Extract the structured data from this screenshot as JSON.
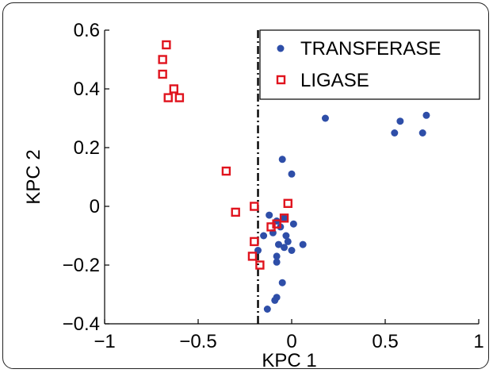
{
  "chart_data": {
    "type": "scatter",
    "title": "",
    "xlabel": "KPC 1",
    "ylabel": "KPC 2",
    "xlim": [
      -1,
      1
    ],
    "ylim": [
      -0.4,
      0.6
    ],
    "xticks": [
      -1,
      -0.5,
      0,
      0.5,
      1
    ],
    "xtick_labels": [
      "−1",
      "−0.5",
      "0",
      "0.5",
      "1"
    ],
    "yticks": [
      -0.4,
      -0.2,
      0,
      0.2,
      0.4,
      0.6
    ],
    "ytick_labels": [
      "−0.4",
      "−0.2",
      "0",
      "0.2",
      "0.4",
      "0.6"
    ],
    "threshold_x": -0.18,
    "legend_position": "top-right",
    "series": [
      {
        "name": "TRANSFERASE",
        "marker": "filled-circle",
        "color": "#2e4ea8",
        "points": [
          [
            0.18,
            0.3
          ],
          [
            0.55,
            0.25
          ],
          [
            0.58,
            0.29
          ],
          [
            0.7,
            0.25
          ],
          [
            0.72,
            0.31
          ],
          [
            -0.05,
            0.16
          ],
          [
            0.0,
            0.11
          ],
          [
            -0.12,
            -0.03
          ],
          [
            -0.08,
            -0.05
          ],
          [
            -0.04,
            -0.04
          ],
          [
            0.01,
            -0.06
          ],
          [
            -0.1,
            -0.09
          ],
          [
            -0.06,
            -0.07
          ],
          [
            -0.03,
            -0.1
          ],
          [
            -0.15,
            -0.1
          ],
          [
            -0.07,
            -0.13
          ],
          [
            -0.02,
            -0.12
          ],
          [
            0.0,
            -0.15
          ],
          [
            0.06,
            -0.13
          ],
          [
            -0.18,
            -0.15
          ],
          [
            -0.08,
            -0.17
          ],
          [
            -0.04,
            -0.14
          ],
          [
            -0.08,
            -0.19
          ],
          [
            -0.05,
            -0.26
          ],
          [
            -0.08,
            -0.31
          ],
          [
            -0.09,
            -0.32
          ],
          [
            -0.13,
            -0.35
          ]
        ]
      },
      {
        "name": "LIGASE",
        "marker": "open-square",
        "color": "#e0141e",
        "points": [
          [
            -0.67,
            0.55
          ],
          [
            -0.69,
            0.5
          ],
          [
            -0.69,
            0.45
          ],
          [
            -0.63,
            0.4
          ],
          [
            -0.66,
            0.37
          ],
          [
            -0.6,
            0.37
          ],
          [
            -0.35,
            0.12
          ],
          [
            -0.3,
            -0.02
          ],
          [
            -0.2,
            0.0
          ],
          [
            -0.02,
            0.01
          ],
          [
            -0.04,
            -0.04
          ],
          [
            -0.08,
            -0.06
          ],
          [
            -0.11,
            -0.07
          ],
          [
            -0.2,
            -0.12
          ],
          [
            -0.21,
            -0.17
          ],
          [
            -0.17,
            -0.2
          ]
        ]
      }
    ]
  }
}
